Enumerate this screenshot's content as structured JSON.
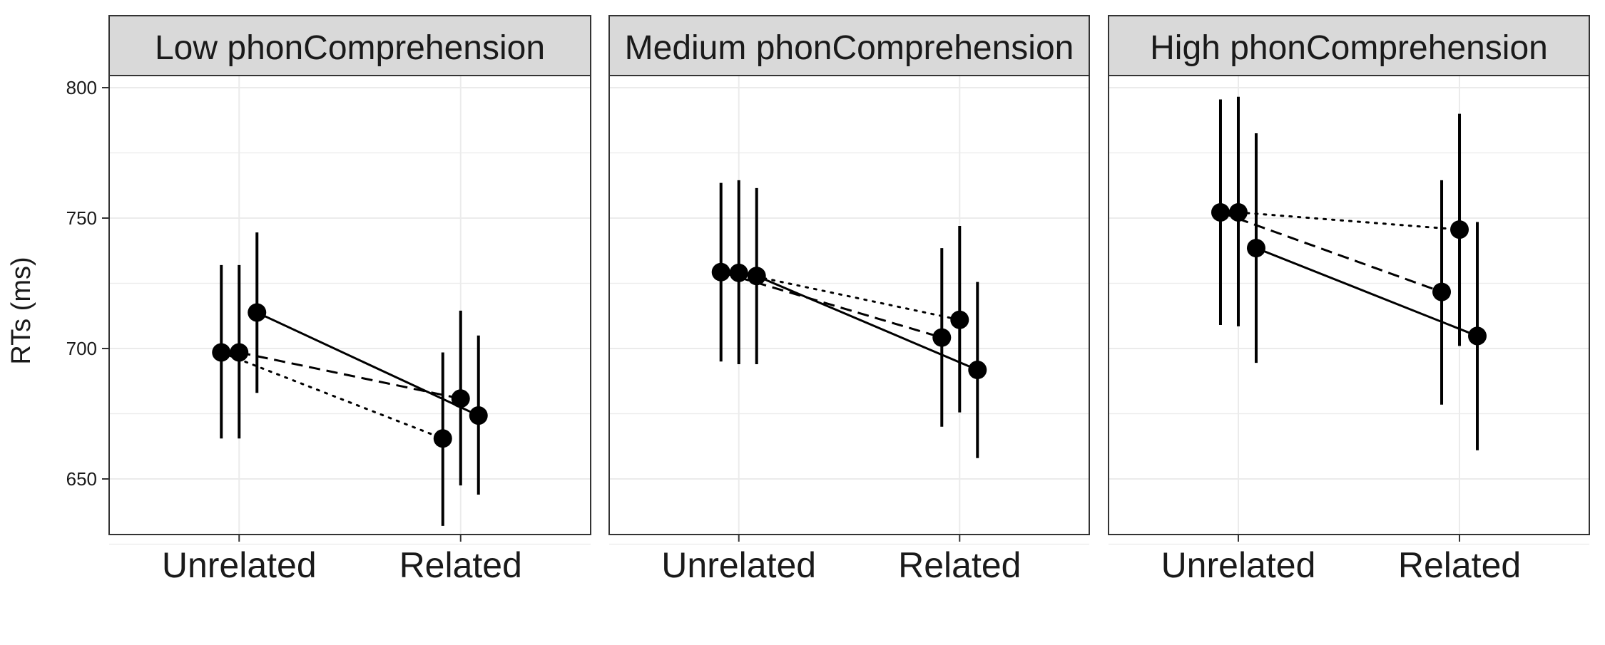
{
  "chart_data": {
    "type": "scatter",
    "ylabel": "RTs (ms)",
    "xlabel": "",
    "ylim": [
      623,
      800
    ],
    "y_ticks": [
      650,
      700,
      750,
      800
    ],
    "categories": [
      "Unrelated",
      "Related"
    ],
    "grid": true,
    "legend": "none",
    "colors": {
      "points": "#000000",
      "strip_fill": "#d9d9d9",
      "grid": "#ebebeb",
      "border": "#333333"
    },
    "panels": [
      {
        "label": "Low phonComprehension",
        "series": [
          {
            "linetype": "dotted",
            "values": [
              698.5,
              665.5
            ],
            "lower": [
              665.5,
              632.0
            ],
            "upper": [
              732.0,
              698.5
            ]
          },
          {
            "linetype": "dashed",
            "values": [
              698.5,
              680.8
            ],
            "lower": [
              665.5,
              647.5
            ],
            "upper": [
              732.0,
              714.5
            ]
          },
          {
            "linetype": "solid",
            "values": [
              713.8,
              674.3
            ],
            "lower": [
              683.0,
              644.0
            ],
            "upper": [
              744.5,
              705.0
            ]
          }
        ]
      },
      {
        "label": "Medium phonComprehension",
        "series": [
          {
            "linetype": "dashed",
            "values": [
              729.3,
              704.2
            ],
            "lower": [
              695.0,
              670.0
            ],
            "upper": [
              763.5,
              738.5
            ]
          },
          {
            "linetype": "dotted",
            "values": [
              729.0,
              711.0
            ],
            "lower": [
              694.0,
              675.5
            ],
            "upper": [
              764.5,
              747.0
            ]
          },
          {
            "linetype": "solid",
            "values": [
              727.8,
              691.8
            ],
            "lower": [
              694.0,
              658.0
            ],
            "upper": [
              761.5,
              725.5
            ]
          }
        ]
      },
      {
        "label": "High phonComprehension",
        "series": [
          {
            "linetype": "dashed",
            "values": [
              752.2,
              721.7
            ],
            "lower": [
              709.0,
              678.5
            ],
            "upper": [
              795.5,
              764.5
            ]
          },
          {
            "linetype": "dotted",
            "values": [
              752.2,
              745.6
            ],
            "lower": [
              708.5,
              701.0
            ],
            "upper": [
              796.5,
              790.0
            ]
          },
          {
            "linetype": "solid",
            "values": [
              738.5,
              704.8
            ],
            "lower": [
              694.5,
              661.0
            ],
            "upper": [
              782.5,
              748.5
            ]
          }
        ]
      }
    ]
  }
}
